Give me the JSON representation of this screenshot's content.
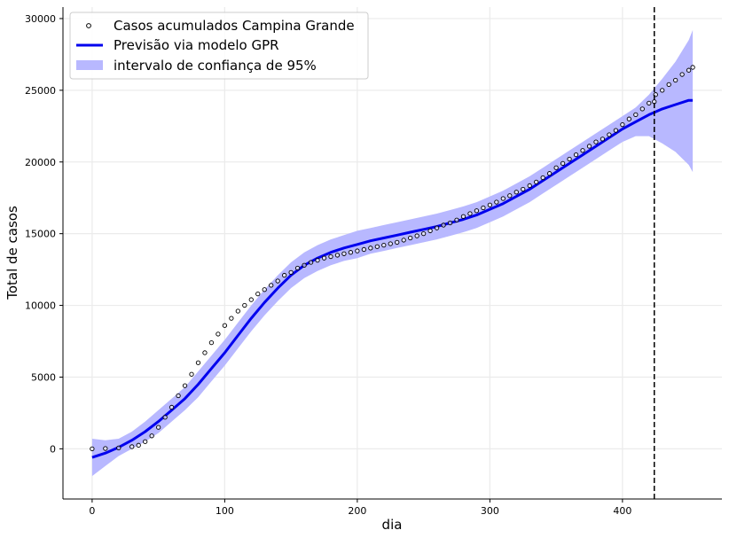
{
  "chart_data": {
    "type": "line",
    "xlabel": "dia",
    "ylabel": "Total de casos",
    "xlim": [
      -22,
      475
    ],
    "ylim": [
      -3500,
      30800
    ],
    "x_ticks": [
      0,
      100,
      200,
      300,
      400
    ],
    "y_ticks": [
      0,
      5000,
      10000,
      15000,
      20000,
      25000,
      30000
    ],
    "grid": true,
    "legend_position": "top-left",
    "vline_x": 424,
    "colors": {
      "prediction": "#0000ee",
      "confidence": "#b8b8ff",
      "observed": "#000000",
      "vline": "#000000"
    },
    "series": [
      {
        "name": "Casos acumulados Campina Grande",
        "kind": "scatter",
        "x": [
          0,
          10,
          20,
          30,
          35,
          40,
          45,
          50,
          55,
          60,
          65,
          70,
          75,
          80,
          85,
          90,
          95,
          100,
          105,
          110,
          115,
          120,
          125,
          130,
          135,
          140,
          145,
          150,
          155,
          160,
          165,
          170,
          175,
          180,
          185,
          190,
          195,
          200,
          205,
          210,
          215,
          220,
          225,
          230,
          235,
          240,
          245,
          250,
          255,
          260,
          265,
          270,
          275,
          280,
          285,
          290,
          295,
          300,
          305,
          310,
          315,
          320,
          325,
          330,
          335,
          340,
          345,
          350,
          355,
          360,
          365,
          370,
          375,
          380,
          385,
          390,
          395,
          400,
          405,
          410,
          415,
          420,
          424,
          425,
          430,
          435,
          440,
          445,
          450,
          453
        ],
        "y": [
          0,
          20,
          60,
          150,
          250,
          500,
          900,
          1500,
          2200,
          2900,
          3700,
          4400,
          5200,
          6000,
          6700,
          7400,
          8000,
          8600,
          9100,
          9600,
          10000,
          10400,
          10800,
          11100,
          11400,
          11700,
          12100,
          12300,
          12600,
          12800,
          13000,
          13150,
          13300,
          13400,
          13500,
          13600,
          13700,
          13800,
          13900,
          14000,
          14100,
          14200,
          14300,
          14400,
          14550,
          14700,
          14850,
          15000,
          15200,
          15400,
          15600,
          15750,
          15950,
          16200,
          16400,
          16600,
          16800,
          17000,
          17200,
          17450,
          17650,
          17900,
          18100,
          18350,
          18600,
          18900,
          19200,
          19600,
          19900,
          20200,
          20500,
          20800,
          21100,
          21400,
          21600,
          21900,
          22200,
          22600,
          23000,
          23300,
          23700,
          24100,
          24200,
          24700,
          25000,
          25400,
          25700,
          26100,
          26400,
          26600
        ]
      },
      {
        "name": "Previsão via modelo GPR",
        "kind": "line",
        "x": [
          0,
          10,
          20,
          30,
          40,
          50,
          60,
          70,
          80,
          90,
          100,
          110,
          120,
          130,
          140,
          150,
          160,
          170,
          180,
          190,
          200,
          210,
          220,
          230,
          240,
          250,
          260,
          270,
          280,
          290,
          300,
          310,
          320,
          330,
          340,
          350,
          360,
          370,
          380,
          390,
          400,
          410,
          420,
          430,
          440,
          450,
          453
        ],
        "y": [
          -600,
          -300,
          100,
          600,
          1200,
          1900,
          2700,
          3500,
          4500,
          5600,
          6700,
          7900,
          9100,
          10200,
          11200,
          12100,
          12800,
          13300,
          13700,
          14000,
          14250,
          14500,
          14700,
          14900,
          15100,
          15300,
          15500,
          15750,
          16000,
          16300,
          16700,
          17100,
          17600,
          18100,
          18700,
          19300,
          19900,
          20500,
          21100,
          21700,
          22300,
          22800,
          23300,
          23700,
          24000,
          24300,
          24300
        ],
        "lower": [
          -1900,
          -1200,
          -500,
          0,
          500,
          1100,
          1900,
          2700,
          3600,
          4700,
          5800,
          7000,
          8200,
          9300,
          10300,
          11200,
          11900,
          12400,
          12800,
          13100,
          13300,
          13600,
          13800,
          14000,
          14200,
          14400,
          14600,
          14850,
          15100,
          15400,
          15800,
          16200,
          16700,
          17200,
          17800,
          18400,
          19000,
          19600,
          20200,
          20800,
          21400,
          21800,
          21800,
          21300,
          20700,
          19800,
          19300
        ],
        "upper": [
          700,
          600,
          700,
          1200,
          1900,
          2700,
          3500,
          4300,
          5400,
          6500,
          7600,
          8800,
          10000,
          11100,
          12100,
          13000,
          13700,
          14200,
          14600,
          14900,
          15200,
          15400,
          15600,
          15800,
          16000,
          16200,
          16400,
          16650,
          16900,
          17200,
          17600,
          18000,
          18500,
          19000,
          19600,
          20200,
          20800,
          21400,
          22000,
          22600,
          23200,
          23800,
          24700,
          25800,
          27000,
          28500,
          29200
        ]
      },
      {
        "name": "intervalo de confiança de 95%",
        "kind": "band"
      }
    ]
  }
}
